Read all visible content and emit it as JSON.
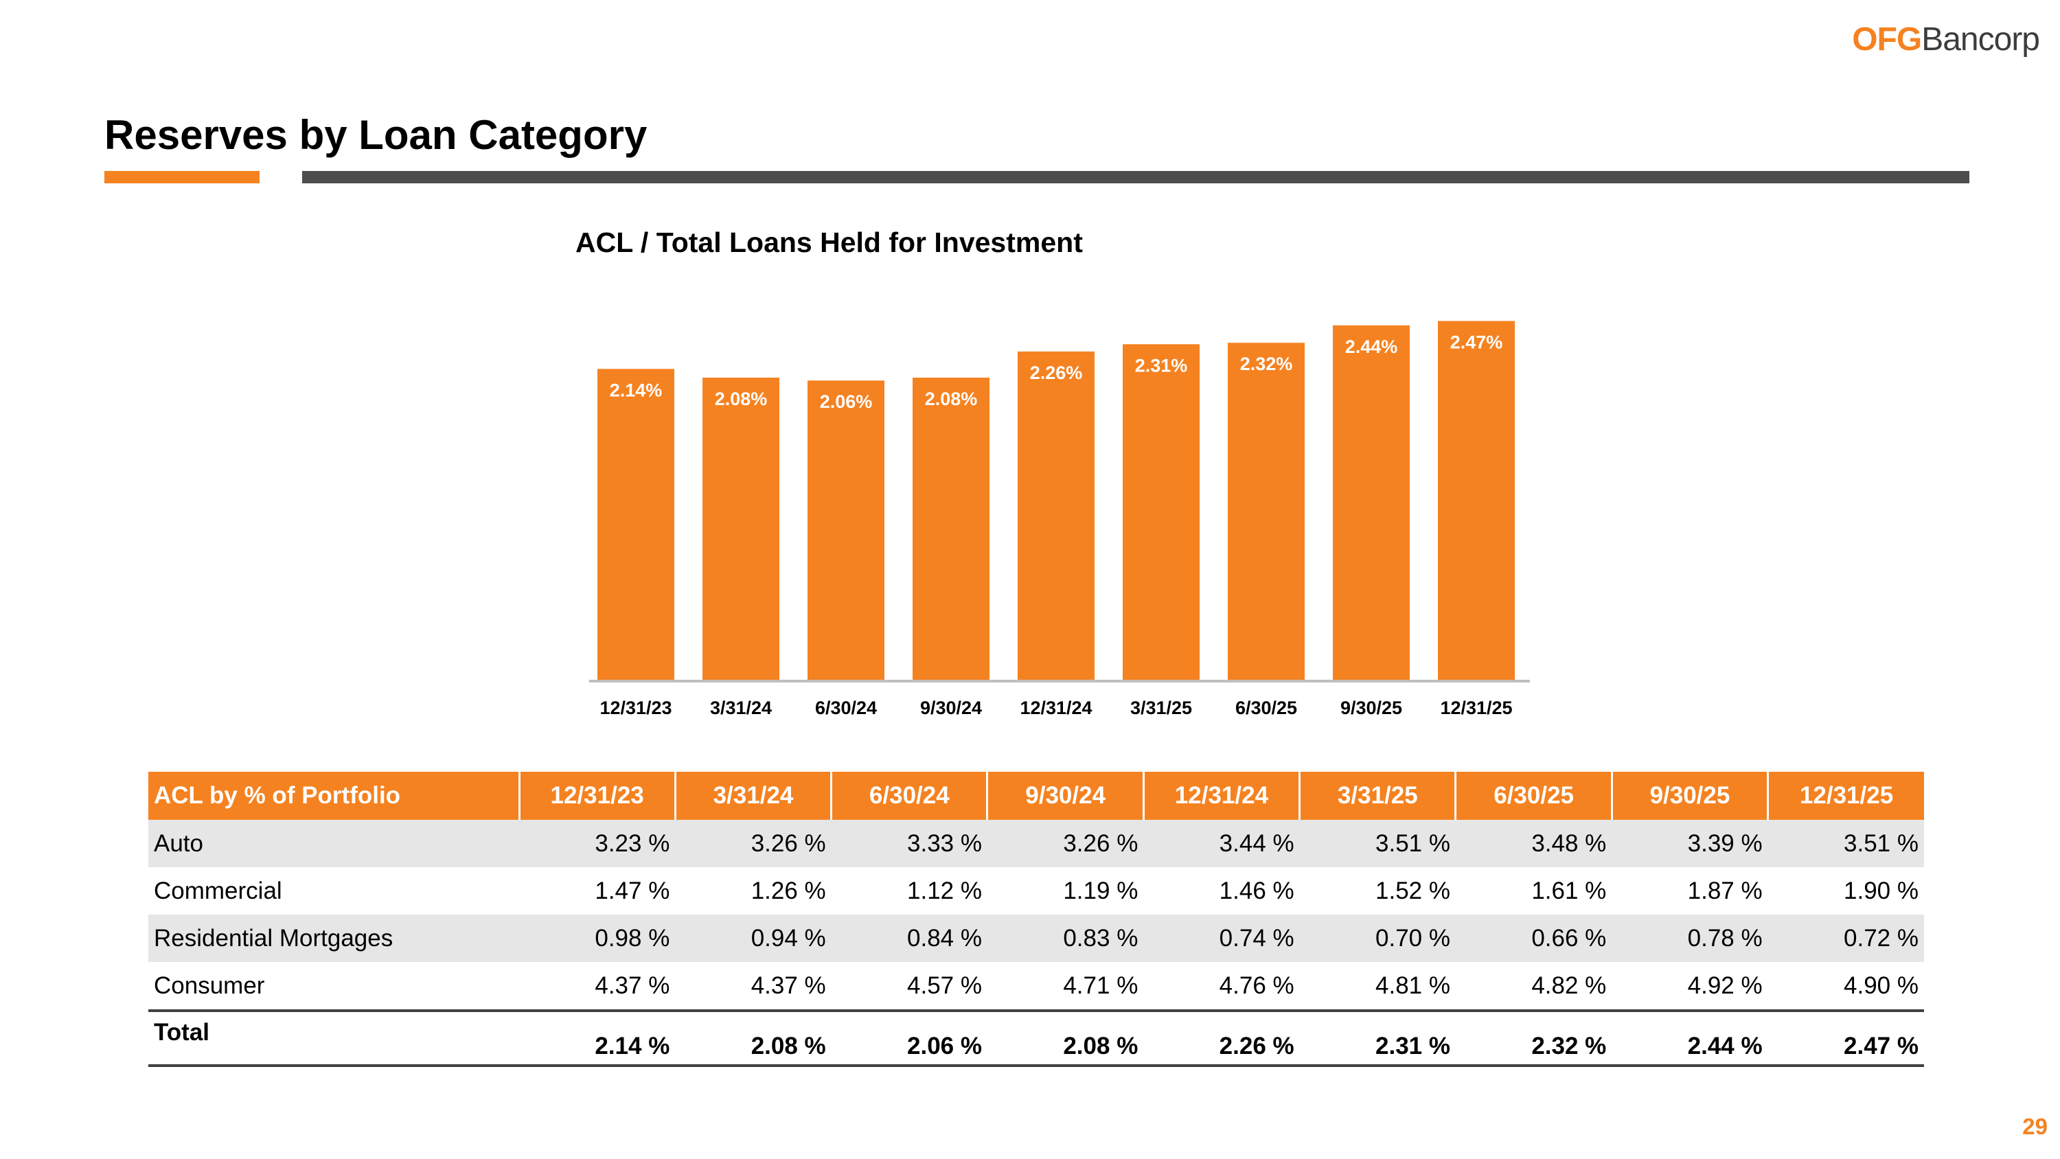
{
  "brand": {
    "accent_color": "#f58220",
    "rule_gray": "#4d4d4d",
    "logo_part1": "OFG",
    "logo_part2": "Bancorp"
  },
  "page": {
    "title": "Reserves by Loan Category",
    "page_number": "29"
  },
  "chart_data": {
    "type": "bar",
    "title": "ACL / Total Loans Held for Investment",
    "categories": [
      "12/31/23",
      "3/31/24",
      "6/30/24",
      "9/30/24",
      "12/31/24",
      "3/31/25",
      "6/30/25",
      "9/30/25",
      "12/31/25"
    ],
    "values": [
      2.14,
      2.08,
      2.06,
      2.08,
      2.26,
      2.31,
      2.32,
      2.44,
      2.47
    ],
    "data_labels": [
      "2.14%",
      "2.08%",
      "2.06%",
      "2.08%",
      "2.26%",
      "2.31%",
      "2.32%",
      "2.44%",
      "2.47%"
    ],
    "xlabel": "",
    "ylabel": "",
    "ylim": [
      0,
      2.6
    ],
    "grid": false,
    "bar_color": "#f58220",
    "axis_color": "#bfbfbf"
  },
  "table": {
    "header_label": "ACL by % of Portfolio",
    "columns": [
      "12/31/23",
      "3/31/24",
      "6/30/24",
      "9/30/24",
      "12/31/24",
      "3/31/25",
      "6/30/25",
      "9/30/25",
      "12/31/25"
    ],
    "rows": [
      {
        "label": "Auto",
        "values": [
          "3.23 %",
          "3.26 %",
          "3.33 %",
          "3.26 %",
          "3.44 %",
          "3.51 %",
          "3.48 %",
          "3.39 %",
          "3.51 %"
        ]
      },
      {
        "label": "Commercial",
        "values": [
          "1.47 %",
          "1.26 %",
          "1.12 %",
          "1.19 %",
          "1.46 %",
          "1.52 %",
          "1.61 %",
          "1.87 %",
          "1.90 %"
        ]
      },
      {
        "label": "Residential Mortgages",
        "values": [
          "0.98 %",
          "0.94 %",
          "0.84 %",
          "0.83 %",
          "0.74 %",
          "0.70 %",
          "0.66 %",
          "0.78 %",
          "0.72 %"
        ]
      },
      {
        "label": "Consumer",
        "values": [
          "4.37 %",
          "4.37 %",
          "4.57 %",
          "4.71 %",
          "4.76 %",
          "4.81 %",
          "4.82 %",
          "4.92 %",
          "4.90 %"
        ]
      }
    ],
    "total": {
      "label": "Total",
      "values": [
        "2.14 %",
        "2.08 %",
        "2.06 %",
        "2.08 %",
        "2.26 %",
        "2.31 %",
        "2.32 %",
        "2.44 %",
        "2.47 %"
      ]
    }
  }
}
